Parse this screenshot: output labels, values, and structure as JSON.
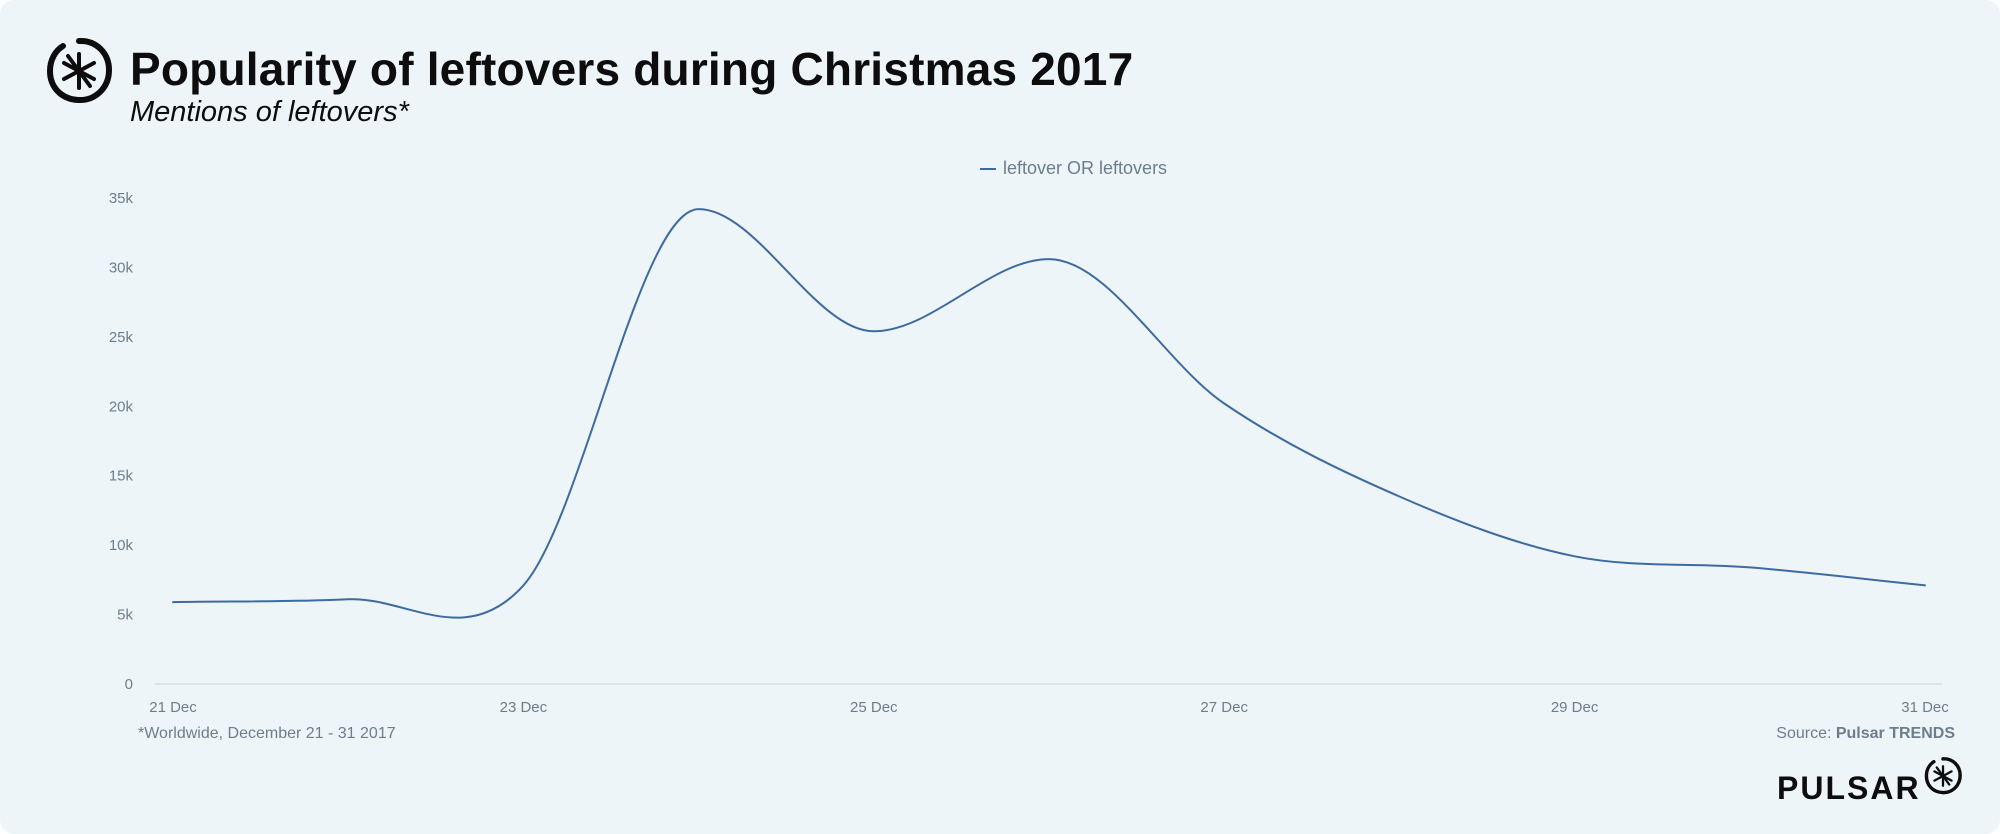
{
  "header": {
    "title": "Popularity of leftovers during Christmas 2017",
    "subtitle": "Mentions of leftovers*"
  },
  "footer": {
    "footnote": "*Worldwide, December 21 - 31 2017",
    "source_prefix": "Source: ",
    "source_name": "Pulsar TRENDS",
    "brand_name": "PULSAR"
  },
  "icons": {
    "logo": "pulsar-logo-icon"
  },
  "colors": {
    "series": "#3d6ba0",
    "background": "#eef5f9",
    "axis_text": "#6c7e8c"
  },
  "chart_data": {
    "type": "line",
    "title": "Popularity of leftovers during Christmas 2017",
    "subtitle": "Mentions of leftovers*",
    "xlabel": "",
    "ylabel": "",
    "x": [
      "2017-12-21",
      "2017-12-22",
      "2017-12-23",
      "2017-12-24",
      "2017-12-25",
      "2017-12-26",
      "2017-12-27",
      "2017-12-28",
      "2017-12-29",
      "2017-12-30",
      "2017-12-31"
    ],
    "x_ticks": [
      "21 Dec",
      "23 Dec",
      "25 Dec",
      "27 Dec",
      "29 Dec",
      "31 Dec"
    ],
    "y_ticks": [
      "0",
      "5k",
      "10k",
      "15k",
      "20k",
      "25k",
      "30k",
      "35k"
    ],
    "ylim": [
      0,
      35000
    ],
    "grid": false,
    "legend_position": "top-center",
    "series": [
      {
        "name": "leftover OR leftovers",
        "values": [
          5900,
          6100,
          7100,
          34200,
          25400,
          30600,
          20200,
          13500,
          9200,
          8400,
          7100
        ]
      }
    ]
  }
}
